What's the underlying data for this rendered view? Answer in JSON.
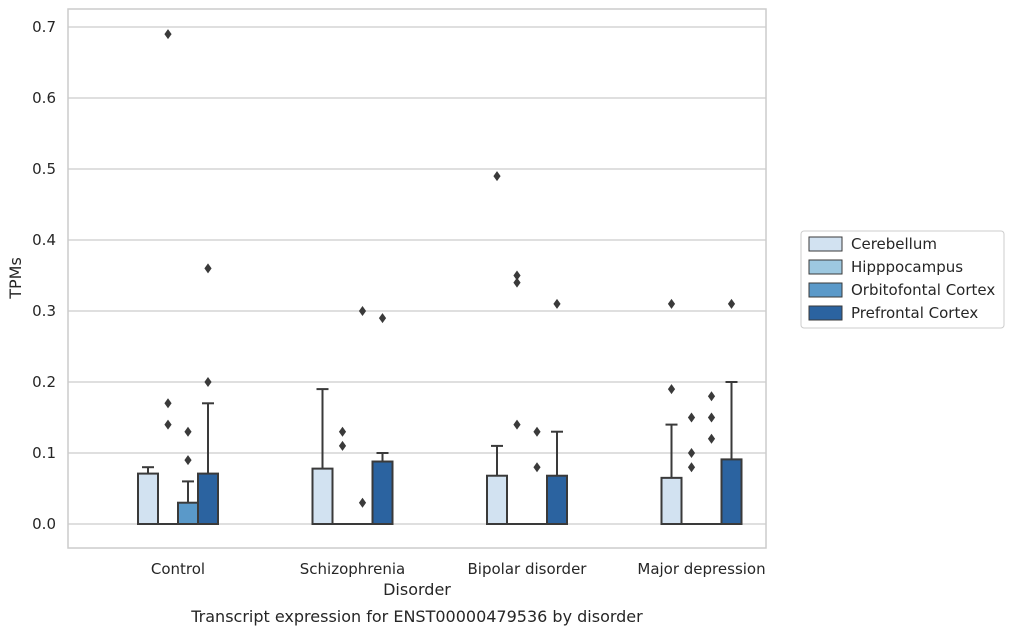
{
  "chart_data": {
    "type": "bar",
    "title": "",
    "caption": "Transcript expression for ENST00000479536 by disorder",
    "xlabel": "Disorder",
    "ylabel": "TPMs",
    "ylim": [
      -0.035,
      0.728
    ],
    "yticks": [
      "0.0",
      "0.1",
      "0.2",
      "0.3",
      "0.4",
      "0.5",
      "0.6",
      "0.7"
    ],
    "grid": "horizontal",
    "legend_position": "right",
    "categories": [
      "Control",
      "Schizophrenia",
      "Bipolar disorder",
      "Major depression"
    ],
    "series": [
      {
        "name": "Cerebellum",
        "color": "#d2e2f1",
        "values": [
          0.071,
          0.078,
          0.068,
          0.065
        ],
        "whisker": [
          0.08,
          0.19,
          0.11,
          0.14
        ],
        "outliers": [
          [],
          [],
          [
            0.49
          ],
          [
            0.31,
            0.19
          ]
        ]
      },
      {
        "name": "Hipppocampus",
        "color": "#9dc8e0",
        "values": [
          0.0,
          0.0,
          0.0,
          0.0
        ],
        "whisker": [
          null,
          null,
          null,
          null
        ],
        "outliers": [
          [
            0.69,
            0.17,
            0.14
          ],
          [
            0.13,
            0.11
          ],
          [
            0.35,
            0.34,
            0.14
          ],
          [
            0.15,
            0.1,
            0.08
          ]
        ]
      },
      {
        "name": "Orbitofontal Cortex",
        "color": "#5a99c9",
        "values": [
          0.03,
          0.0,
          0.0,
          0.0
        ],
        "whisker": [
          0.06,
          null,
          null,
          null
        ],
        "outliers": [
          [
            0.13,
            0.09
          ],
          [
            0.3,
            0.03
          ],
          [
            0.13,
            0.08
          ],
          [
            0.18,
            0.15,
            0.12
          ]
        ]
      },
      {
        "name": "Prefrontal Cortex",
        "color": "#2b63a0",
        "values": [
          0.071,
          0.088,
          0.068,
          0.091
        ],
        "whisker": [
          0.17,
          0.1,
          0.13,
          0.2
        ],
        "outliers": [
          [
            0.36,
            0.2
          ],
          [
            0.29
          ],
          [
            0.31
          ],
          [
            0.31
          ]
        ]
      }
    ]
  }
}
